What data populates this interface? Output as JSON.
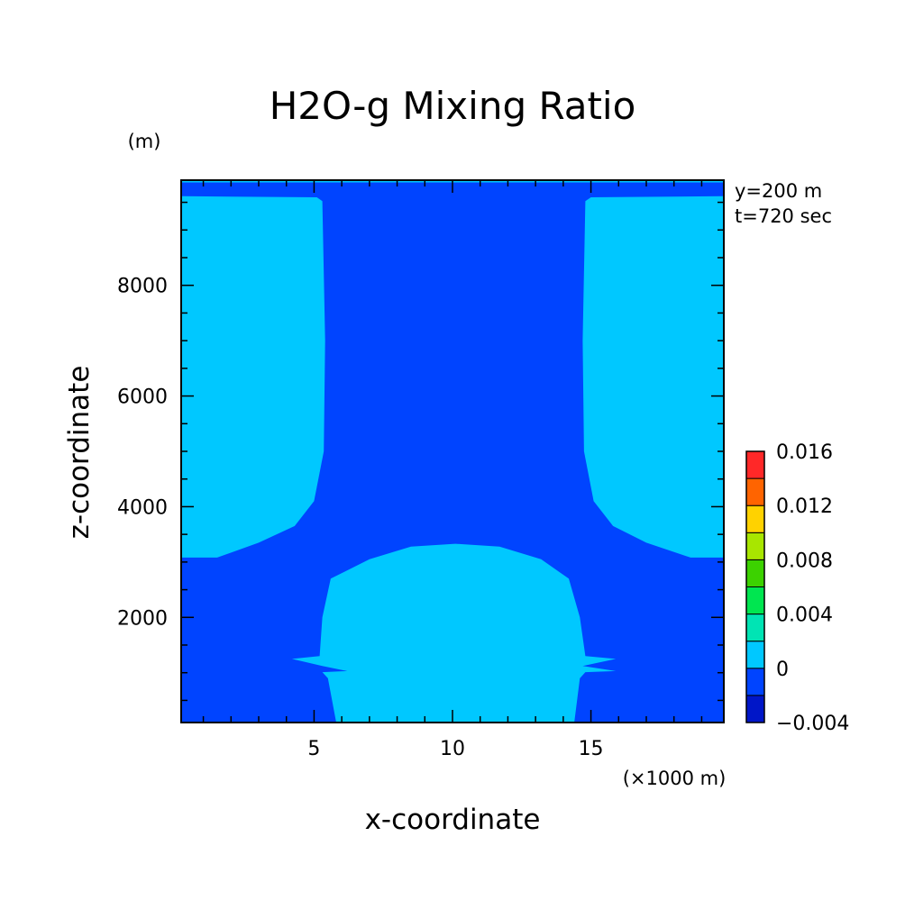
{
  "chart_data": {
    "type": "heatmap",
    "title": "H2O-g Mixing Ratio",
    "xlabel": "x-coordinate",
    "ylabel": "z-coordinate",
    "x_unit": "(×1000 m)",
    "y_unit": "(m)",
    "annotations": [
      "y=200 m",
      "t=720 sec"
    ],
    "xlim": [
      0.2,
      19.8
    ],
    "ylim": [
      100,
      9900
    ],
    "x_ticks": [
      {
        "value": 5,
        "label": "5"
      },
      {
        "value": 10,
        "label": "10"
      },
      {
        "value": 15,
        "label": "15"
      }
    ],
    "y_ticks": [
      {
        "value": 2000,
        "label": "2000"
      },
      {
        "value": 4000,
        "label": "4000"
      },
      {
        "value": 6000,
        "label": "6000"
      },
      {
        "value": 8000,
        "label": "8000"
      }
    ],
    "colorbar": {
      "labels": [
        {
          "value": 0.016,
          "label": "0.016"
        },
        {
          "value": 0.012,
          "label": "0.012"
        },
        {
          "value": 0.008,
          "label": "0.008"
        },
        {
          "value": 0.004,
          "label": "0.004"
        },
        {
          "value": 0,
          "label": "0"
        },
        {
          "value": -0.004,
          "label": "−0.004"
        }
      ],
      "levels": [
        {
          "from": -0.004,
          "to": -0.002,
          "color": "#0016c8"
        },
        {
          "from": -0.002,
          "to": 0.0,
          "color": "#0044ff"
        },
        {
          "from": 0.0,
          "to": 0.002,
          "color": "#00c8ff"
        },
        {
          "from": 0.002,
          "to": 0.004,
          "color": "#00e4b4"
        },
        {
          "from": 0.004,
          "to": 0.006,
          "color": "#00e650"
        },
        {
          "from": 0.006,
          "to": 0.008,
          "color": "#3cd200"
        },
        {
          "from": 0.008,
          "to": 0.01,
          "color": "#a8e600"
        },
        {
          "from": 0.01,
          "to": 0.012,
          "color": "#ffd200"
        },
        {
          "from": 0.012,
          "to": 0.014,
          "color": "#ff6400"
        },
        {
          "from": 0.014,
          "to": 0.016,
          "color": "#ff2828"
        }
      ]
    },
    "background_level_color": "#0044ff",
    "contour_regions": [
      {
        "name": "left-upper-moist-region",
        "color": "#00c8ff",
        "points": [
          [
            0.2,
            9610
          ],
          [
            5.1,
            9590
          ],
          [
            5.3,
            9520
          ],
          [
            5.4,
            7000
          ],
          [
            5.35,
            5000
          ],
          [
            5.0,
            4100
          ],
          [
            4.3,
            3650
          ],
          [
            3.0,
            3350
          ],
          [
            1.5,
            3080
          ],
          [
            0.2,
            3080
          ]
        ]
      },
      {
        "name": "right-upper-moist-region",
        "color": "#00c8ff",
        "points": [
          [
            19.8,
            9610
          ],
          [
            15.0,
            9590
          ],
          [
            14.8,
            9520
          ],
          [
            14.7,
            7000
          ],
          [
            14.75,
            5000
          ],
          [
            15.1,
            4100
          ],
          [
            15.8,
            3650
          ],
          [
            17.0,
            3350
          ],
          [
            18.6,
            3080
          ],
          [
            19.8,
            3080
          ]
        ]
      },
      {
        "name": "central-lower-moist-region",
        "color": "#00c8ff",
        "points": [
          [
            7.0,
            3050
          ],
          [
            8.5,
            3280
          ],
          [
            10.1,
            3330
          ],
          [
            11.7,
            3280
          ],
          [
            13.2,
            3050
          ],
          [
            14.2,
            2700
          ],
          [
            14.6,
            2000
          ],
          [
            14.8,
            1300
          ],
          [
            15.9,
            1250
          ],
          [
            14.7,
            1120
          ],
          [
            15.9,
            1030
          ],
          [
            14.8,
            1010
          ],
          [
            14.6,
            900
          ],
          [
            14.4,
            100
          ],
          [
            5.8,
            100
          ],
          [
            5.5,
            900
          ],
          [
            5.3,
            1010
          ],
          [
            6.2,
            1030
          ],
          [
            5.3,
            1120
          ],
          [
            4.2,
            1250
          ],
          [
            5.2,
            1300
          ],
          [
            5.3,
            2000
          ],
          [
            5.6,
            2700
          ]
        ]
      },
      {
        "name": "top-edge-moist-strip",
        "color": "#00c8ff",
        "points": [
          [
            0.2,
            9900
          ],
          [
            19.8,
            9900
          ],
          [
            19.8,
            9860
          ],
          [
            0.2,
            9860
          ]
        ]
      }
    ]
  }
}
